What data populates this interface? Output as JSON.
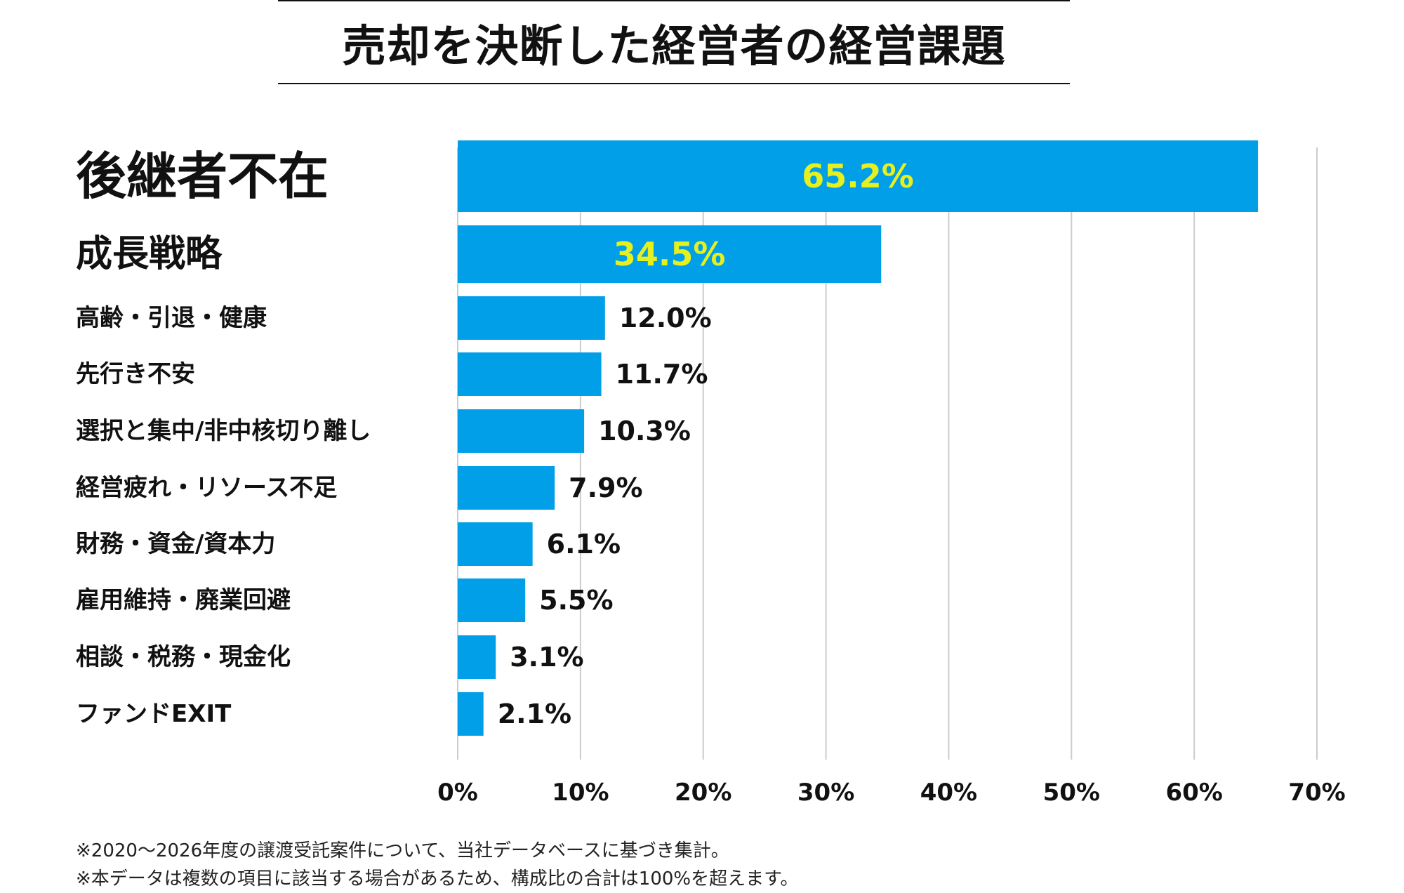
{
  "chart_data": {
    "type": "bar",
    "orientation": "horizontal",
    "title": "売却を決断した経営者の経営課題",
    "categories": [
      "後継者不在",
      "成長戦略",
      "高齢・引退・健康",
      "先行き不安",
      "選択と集中/非中核切り離し",
      "経営疲れ・リソース不足",
      "財務・資金/資本力",
      "雇用維持・廃業回避",
      "相談・税務・現金化",
      "ファンドEXIT"
    ],
    "values": [
      65.2,
      34.5,
      12.0,
      11.7,
      10.3,
      7.9,
      6.1,
      5.5,
      3.1,
      2.1
    ],
    "value_labels": [
      "65.2%",
      "34.5%",
      "12.0%",
      "11.7%",
      "10.3%",
      "7.9%",
      "6.1%",
      "5.5%",
      "3.1%",
      "2.1%"
    ],
    "xlim": [
      0,
      70
    ],
    "xticks": [
      "0%",
      "10%",
      "20%",
      "30%",
      "40%",
      "50%",
      "60%",
      "70%"
    ],
    "xlabel": "",
    "ylabel": "",
    "grid": "vertical",
    "legend": "none",
    "colors": {
      "bar": "#009fe8",
      "highlight_label": "#e6f01e",
      "label": "#111111",
      "grid": "#cccccc"
    }
  },
  "footnotes": [
    "※2020〜2026年度の譲渡受託案件について、当社データベースに基づき集計。",
    "※本データは複数の項目に該当する場合があるため、構成比の合計は100%を超えます。"
  ]
}
